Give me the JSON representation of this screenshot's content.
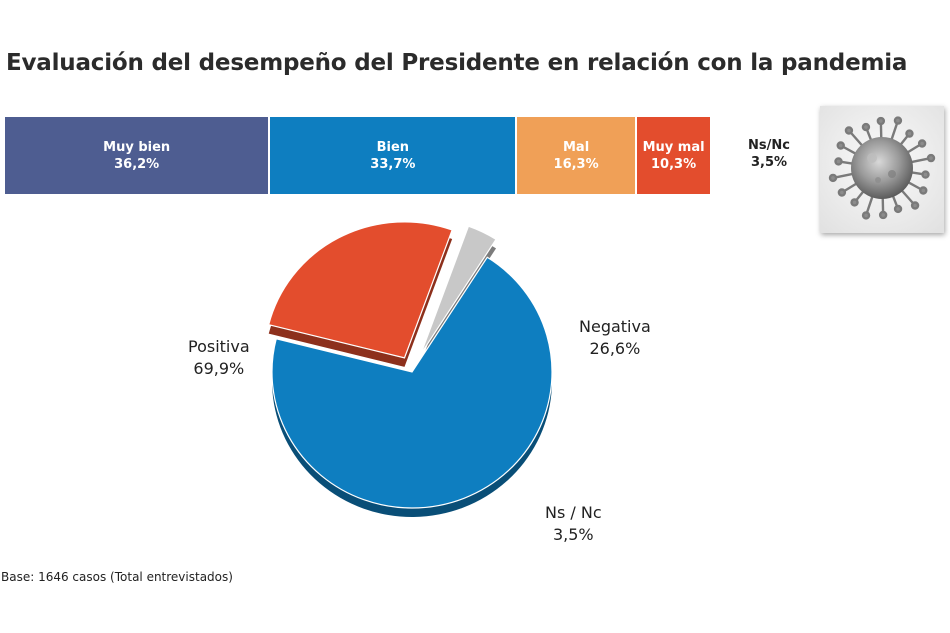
{
  "title": "Evaluación del desempeño del Presidente en relación con la pandemia",
  "colors": {
    "muy_bien": "#4e5d91",
    "bien": "#0e7ec0",
    "mal": "#f0a057",
    "muy_mal": "#e34d2d",
    "ns_nc": "#c8c8c8"
  },
  "chart_data": [
    {
      "type": "bar",
      "orientation": "horizontal-stacked",
      "categories": [
        "Muy bien",
        "Bien",
        "Mal",
        "Muy mal",
        "Ns/Nc"
      ],
      "values": [
        36.2,
        33.7,
        16.3,
        10.3,
        3.5
      ],
      "labels": {
        "muy_bien": {
          "name": "Muy bien",
          "value": "36,2%"
        },
        "bien": {
          "name": "Bien",
          "value": "33,7%"
        },
        "mal": {
          "name": "Mal",
          "value": "16,3%"
        },
        "muy_mal": {
          "name": "Muy mal",
          "value": "10,3%"
        },
        "ns_nc": {
          "name": "Ns/Nc",
          "value": "3,5%"
        }
      }
    },
    {
      "type": "pie",
      "categories": [
        "Positiva",
        "Negativa",
        "Ns / Nc"
      ],
      "values": [
        69.9,
        26.6,
        3.5
      ],
      "labels": {
        "positiva": {
          "name": "Positiva",
          "value": "69,9%"
        },
        "negativa": {
          "name": "Negativa",
          "value": "26,6%"
        },
        "ns_nc": {
          "name": "Ns / Nc",
          "value": "3,5%"
        }
      }
    }
  ],
  "image_icon": "coronavirus-icon",
  "base_note": "Base: 1646 casos (Total entrevistados)"
}
